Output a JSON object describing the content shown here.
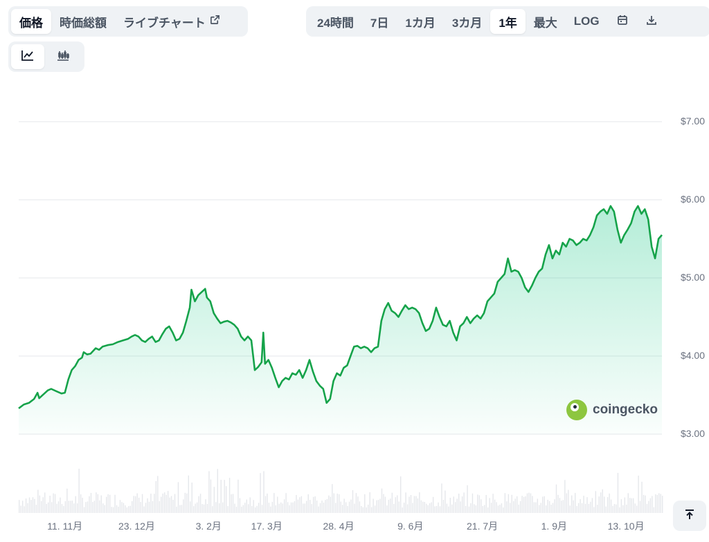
{
  "tabs_left": [
    {
      "label": "価格",
      "active": true
    },
    {
      "label": "時価総額",
      "active": false
    },
    {
      "label": "ライブチャート",
      "active": false,
      "icon": "external-link-icon"
    }
  ],
  "ranges": [
    {
      "label": "24時間",
      "active": false
    },
    {
      "label": "7日",
      "active": false
    },
    {
      "label": "1カ月",
      "active": false
    },
    {
      "label": "3カ月",
      "active": false
    },
    {
      "label": "1年",
      "active": true
    },
    {
      "label": "最大",
      "active": false
    },
    {
      "label": "LOG",
      "active": false
    }
  ],
  "toolbar_icons": [
    "calendar-icon",
    "download-icon"
  ],
  "chart_type_icons": [
    {
      "icon": "line-chart-icon",
      "active": true
    },
    {
      "icon": "candlestick-icon",
      "active": false
    }
  ],
  "watermark": "coingecko",
  "chart_data": {
    "type": "area",
    "y_tick_labels": [
      "$7.00",
      "$6.00",
      "$5.00",
      "$4.00",
      "$3.00"
    ],
    "y_ticks": [
      7,
      6,
      5,
      4,
      3
    ],
    "ylim": [
      3,
      7.4
    ],
    "x_tick_labels": [
      "11. 11月",
      "23. 12月",
      "3. 2月",
      "17. 3月",
      "28. 4月",
      "9. 6月",
      "21. 7月",
      "1. 9月",
      "13. 10月"
    ],
    "x_tick_days": [
      27,
      69,
      111,
      145,
      187,
      229,
      271,
      313,
      355
    ],
    "x_range_days": [
      0,
      362
    ],
    "line_color": "#16a34a",
    "fill_color": "#16c784",
    "grid": true,
    "series": [
      {
        "points": [
          [
            0,
            3.33
          ],
          [
            3,
            3.38
          ],
          [
            6,
            3.4
          ],
          [
            9,
            3.45
          ],
          [
            11,
            3.53
          ],
          [
            12,
            3.46
          ],
          [
            15,
            3.52
          ],
          [
            17,
            3.56
          ],
          [
            19,
            3.58
          ],
          [
            22,
            3.55
          ],
          [
            25,
            3.52
          ],
          [
            27,
            3.53
          ],
          [
            29,
            3.7
          ],
          [
            31,
            3.82
          ],
          [
            33,
            3.87
          ],
          [
            35,
            3.95
          ],
          [
            37,
            3.98
          ],
          [
            38,
            4.05
          ],
          [
            40,
            4.02
          ],
          [
            42,
            4.03
          ],
          [
            45,
            4.1
          ],
          [
            47,
            4.08
          ],
          [
            49,
            4.12
          ],
          [
            52,
            4.14
          ],
          [
            55,
            4.15
          ],
          [
            58,
            4.18
          ],
          [
            61,
            4.2
          ],
          [
            64,
            4.22
          ],
          [
            66,
            4.25
          ],
          [
            68,
            4.27
          ],
          [
            70,
            4.25
          ],
          [
            72,
            4.2
          ],
          [
            74,
            4.18
          ],
          [
            76,
            4.22
          ],
          [
            78,
            4.25
          ],
          [
            80,
            4.18
          ],
          [
            82,
            4.2
          ],
          [
            84,
            4.28
          ],
          [
            86,
            4.35
          ],
          [
            88,
            4.38
          ],
          [
            90,
            4.3
          ],
          [
            92,
            4.2
          ],
          [
            94,
            4.22
          ],
          [
            96,
            4.3
          ],
          [
            98,
            4.45
          ],
          [
            100,
            4.62
          ],
          [
            101,
            4.85
          ],
          [
            103,
            4.7
          ],
          [
            105,
            4.78
          ],
          [
            107,
            4.82
          ],
          [
            109,
            4.86
          ],
          [
            110,
            4.75
          ],
          [
            112,
            4.7
          ],
          [
            114,
            4.55
          ],
          [
            116,
            4.48
          ],
          [
            118,
            4.42
          ],
          [
            120,
            4.44
          ],
          [
            122,
            4.45
          ],
          [
            124,
            4.43
          ],
          [
            126,
            4.4
          ],
          [
            128,
            4.35
          ],
          [
            130,
            4.25
          ],
          [
            132,
            4.2
          ],
          [
            134,
            4.25
          ],
          [
            136,
            4.2
          ],
          [
            138,
            3.82
          ],
          [
            140,
            3.86
          ],
          [
            142,
            3.92
          ],
          [
            143,
            4.3
          ],
          [
            144,
            3.9
          ],
          [
            146,
            3.95
          ],
          [
            148,
            3.85
          ],
          [
            150,
            3.72
          ],
          [
            152,
            3.6
          ],
          [
            154,
            3.68
          ],
          [
            156,
            3.72
          ],
          [
            158,
            3.7
          ],
          [
            160,
            3.78
          ],
          [
            162,
            3.76
          ],
          [
            164,
            3.82
          ],
          [
            166,
            3.72
          ],
          [
            168,
            3.82
          ],
          [
            170,
            3.95
          ],
          [
            172,
            3.8
          ],
          [
            174,
            3.68
          ],
          [
            176,
            3.62
          ],
          [
            178,
            3.58
          ],
          [
            180,
            3.4
          ],
          [
            182,
            3.45
          ],
          [
            184,
            3.68
          ],
          [
            186,
            3.78
          ],
          [
            188,
            3.75
          ],
          [
            190,
            3.85
          ],
          [
            192,
            3.88
          ],
          [
            194,
            4.0
          ],
          [
            196,
            4.12
          ],
          [
            198,
            4.13
          ],
          [
            200,
            4.1
          ],
          [
            202,
            4.12
          ],
          [
            204,
            4.1
          ],
          [
            206,
            4.05
          ],
          [
            208,
            4.1
          ],
          [
            210,
            4.12
          ],
          [
            212,
            4.45
          ],
          [
            214,
            4.6
          ],
          [
            216,
            4.68
          ],
          [
            218,
            4.58
          ],
          [
            220,
            4.55
          ],
          [
            222,
            4.5
          ],
          [
            224,
            4.58
          ],
          [
            226,
            4.65
          ],
          [
            228,
            4.6
          ],
          [
            230,
            4.62
          ],
          [
            232,
            4.6
          ],
          [
            234,
            4.55
          ],
          [
            236,
            4.42
          ],
          [
            238,
            4.32
          ],
          [
            240,
            4.35
          ],
          [
            242,
            4.45
          ],
          [
            244,
            4.62
          ],
          [
            246,
            4.5
          ],
          [
            248,
            4.4
          ],
          [
            250,
            4.38
          ],
          [
            252,
            4.45
          ],
          [
            254,
            4.3
          ],
          [
            256,
            4.2
          ],
          [
            258,
            4.38
          ],
          [
            260,
            4.42
          ],
          [
            262,
            4.5
          ],
          [
            264,
            4.42
          ],
          [
            266,
            4.48
          ],
          [
            268,
            4.52
          ],
          [
            270,
            4.48
          ],
          [
            272,
            4.55
          ],
          [
            274,
            4.7
          ],
          [
            276,
            4.75
          ],
          [
            278,
            4.8
          ],
          [
            280,
            4.95
          ],
          [
            282,
            5.0
          ],
          [
            284,
            5.05
          ],
          [
            286,
            5.25
          ],
          [
            288,
            5.08
          ],
          [
            290,
            5.1
          ],
          [
            292,
            5.08
          ],
          [
            294,
            5.0
          ],
          [
            296,
            4.88
          ],
          [
            298,
            4.82
          ],
          [
            300,
            4.9
          ],
          [
            302,
            5.0
          ],
          [
            304,
            5.08
          ],
          [
            306,
            5.12
          ],
          [
            308,
            5.3
          ],
          [
            310,
            5.42
          ],
          [
            312,
            5.25
          ],
          [
            314,
            5.35
          ],
          [
            316,
            5.3
          ],
          [
            318,
            5.45
          ],
          [
            320,
            5.4
          ],
          [
            322,
            5.5
          ],
          [
            324,
            5.48
          ],
          [
            326,
            5.42
          ],
          [
            328,
            5.45
          ],
          [
            330,
            5.5
          ],
          [
            332,
            5.48
          ],
          [
            334,
            5.55
          ],
          [
            336,
            5.65
          ],
          [
            338,
            5.8
          ],
          [
            340,
            5.85
          ],
          [
            342,
            5.88
          ],
          [
            344,
            5.82
          ],
          [
            346,
            5.92
          ],
          [
            348,
            5.85
          ],
          [
            350,
            5.62
          ],
          [
            352,
            5.45
          ],
          [
            354,
            5.55
          ],
          [
            356,
            5.62
          ],
          [
            358,
            5.7
          ],
          [
            360,
            5.85
          ],
          [
            362,
            5.92
          ],
          [
            364,
            5.82
          ],
          [
            366,
            5.88
          ],
          [
            368,
            5.75
          ],
          [
            370,
            5.4
          ],
          [
            372,
            5.25
          ],
          [
            374,
            5.5
          ],
          [
            376,
            5.55
          ]
        ]
      }
    ]
  }
}
